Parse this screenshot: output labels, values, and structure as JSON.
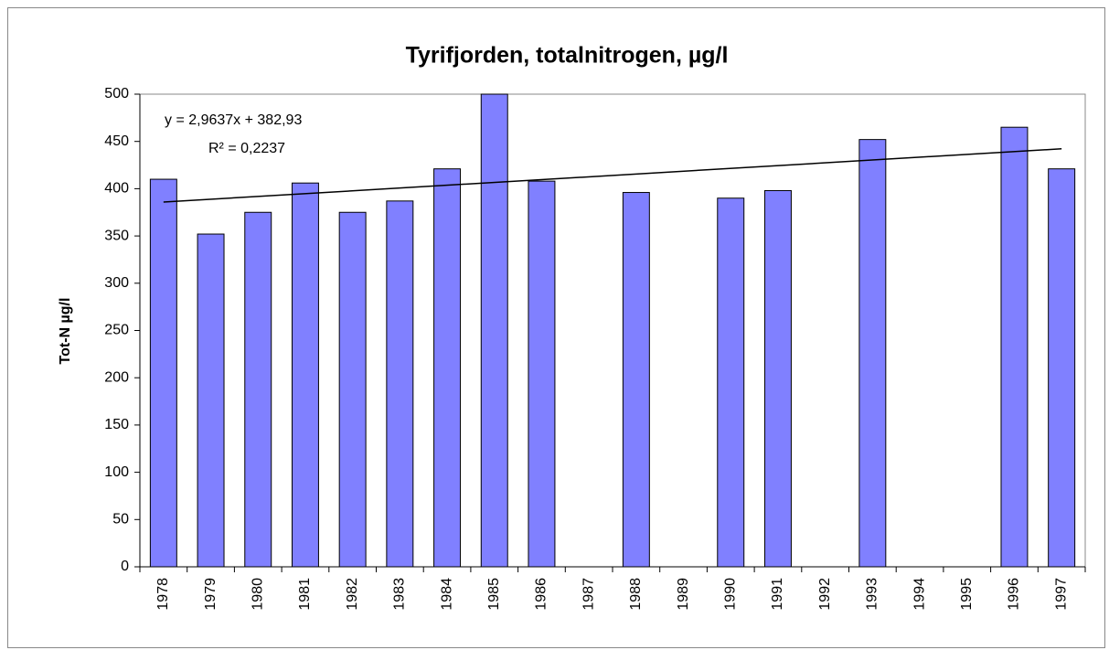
{
  "chart_data": {
    "type": "bar",
    "title": "Tyrifjorden, totalnitrogen, µg/l",
    "y_label": "Tot-N µg/l",
    "categories": [
      "1978",
      "1979",
      "1980",
      "1981",
      "1982",
      "1983",
      "1984",
      "1985",
      "1986",
      "1987",
      "1988",
      "1989",
      "1990",
      "1991",
      "1992",
      "1993",
      "1994",
      "1995",
      "1996",
      "1997"
    ],
    "values": [
      410,
      352,
      375,
      406,
      375,
      387,
      421,
      500,
      408,
      null,
      396,
      null,
      390,
      398,
      null,
      452,
      null,
      null,
      465,
      421
    ],
    "color": "#8080ff",
    "ylim": [
      0,
      500
    ],
    "yticks": [
      0,
      50,
      100,
      150,
      200,
      250,
      300,
      350,
      400,
      450,
      500
    ],
    "grid": false,
    "trendline": {
      "slope": 2.9637,
      "intercept": 382.93,
      "label": "y = 2,9637x + 382,93",
      "r_squared": {
        "value": 0.2237,
        "label": "R² = 0,2237"
      }
    }
  }
}
